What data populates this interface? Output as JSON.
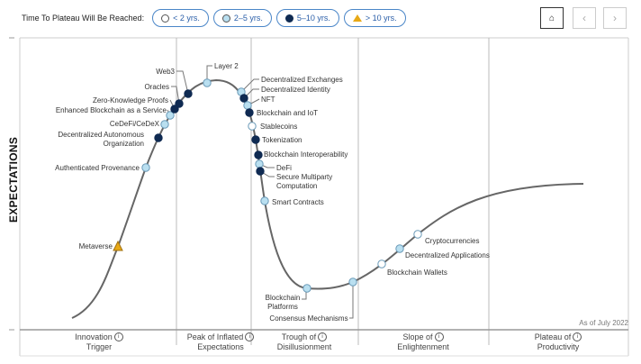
{
  "legend": {
    "title": "Time To Plateau Will Be Reached:",
    "items": [
      {
        "label": "< 2 yrs.",
        "key": "lt2",
        "color": "#ffffff"
      },
      {
        "label": "2–5 yrs.",
        "key": "2to5",
        "color": "#b9dff0"
      },
      {
        "label": "5–10 yrs.",
        "key": "5to10",
        "color": "#0f2a52"
      },
      {
        "label": "> 10 yrs.",
        "key": "gt10",
        "color": "#e8a916"
      }
    ]
  },
  "nav": {
    "home_icon": "home-icon",
    "prev_icon": "chevron-left-icon",
    "next_icon": "chevron-right-icon",
    "prev": "‹",
    "next": "›",
    "home": "⌂"
  },
  "y_axis_label": "EXPECTATIONS",
  "as_of": "As of July 2022",
  "phases": [
    {
      "line1": "Innovation",
      "line2": "Trigger"
    },
    {
      "line1": "Peak of Inflated",
      "line2": "Expectations"
    },
    {
      "line1": "Trough of",
      "line2": "Disillusionment"
    },
    {
      "line1": "Slope of",
      "line2": "Enlightenment"
    },
    {
      "line1": "Plateau of",
      "line2": "Productivity"
    }
  ],
  "info_glyph": "i",
  "technologies": [
    {
      "name": "Metaverse",
      "plateau": "gt10"
    },
    {
      "name": "Authenticated Provenance",
      "plateau": "2to5"
    },
    {
      "name": "Decentralized Autonomous",
      "name2": "Organization",
      "plateau": "5to10"
    },
    {
      "name": "CeDeFi/CeDeX",
      "plateau": "2to5"
    },
    {
      "name": "Enhanced Blockchain as a Service",
      "plateau": "2to5"
    },
    {
      "name": "Zero-Knowledge Proofs",
      "plateau": "5to10"
    },
    {
      "name": "Oracles",
      "plateau": "5to10"
    },
    {
      "name": "Web3",
      "plateau": "5to10"
    },
    {
      "name": "Layer 2",
      "plateau": "2to5"
    },
    {
      "name": "Decentralized Exchanges",
      "plateau": "2to5"
    },
    {
      "name": "Decentralized Identity",
      "plateau": "5to10"
    },
    {
      "name": "NFT",
      "plateau": "2to5"
    },
    {
      "name": "Blockchain and IoT",
      "plateau": "5to10"
    },
    {
      "name": "Stablecoins",
      "plateau": "lt2"
    },
    {
      "name": "Tokenization",
      "plateau": "5to10"
    },
    {
      "name": "Blockchain Interoperability",
      "plateau": "5to10"
    },
    {
      "name": "DeFi",
      "plateau": "2to5"
    },
    {
      "name": "Secure Multiparty",
      "name2": "Computation",
      "plateau": "5to10"
    },
    {
      "name": "Smart Contracts",
      "plateau": "2to5"
    },
    {
      "name": "Blockchain",
      "name2": "Platforms",
      "plateau": "2to5"
    },
    {
      "name": "Consensus Mechanisms",
      "plateau": "2to5"
    },
    {
      "name": "Blockchain Wallets",
      "plateau": "lt2"
    },
    {
      "name": "Decentralized Applications",
      "plateau": "2to5"
    },
    {
      "name": "Cryptocurrencies",
      "plateau": "lt2"
    }
  ]
}
